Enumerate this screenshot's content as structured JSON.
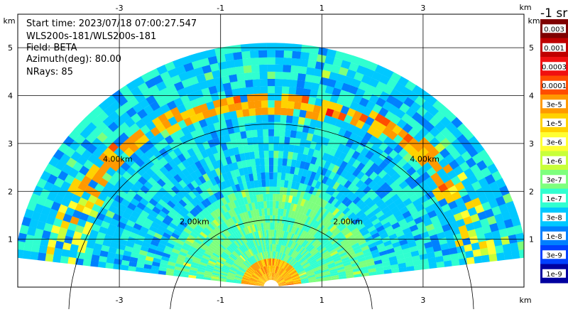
{
  "info": {
    "start_time": "Start time: 2023/07/18 07:00:27.547",
    "instrument": "WLS200s-181/WLS200s-181",
    "field": "Field: BETA",
    "azimuth": "Azimuth(deg): 80.00",
    "nrays": "NRays: 85"
  },
  "colorbar": {
    "unit": "-1 sr",
    "labels": [
      "0.003",
      "0.001",
      "0.0003",
      "0.0001",
      "3e-5",
      "1e-5",
      "3e-6",
      "1e-6",
      "3e-7",
      "1e-7",
      "3e-8",
      "1e-8",
      "3e-9",
      "1e-9"
    ],
    "colors": [
      "#7f0000",
      "#c00000",
      "#f01010",
      "#ff4d00",
      "#ff9900",
      "#ffd200",
      "#ffff33",
      "#c8ff3a",
      "#7dff7d",
      "#30ffd0",
      "#00c8ff",
      "#0080ff",
      "#0040ff",
      "#0000a0"
    ]
  },
  "chart_data": {
    "type": "heatmap",
    "subtype": "RHI lidar scan",
    "field": "BETA",
    "x_axis": {
      "unit": "km",
      "range": [
        -5.0,
        5.0
      ],
      "ticks": [
        -3,
        -1,
        1,
        3
      ]
    },
    "y_axis": {
      "unit": "km",
      "range": [
        0.0,
        5.7
      ],
      "ticks": [
        1,
        2,
        3,
        4,
        5
      ]
    },
    "grid": true,
    "range_rings_km": [
      2.0,
      4.0
    ],
    "range_ring_labels": [
      "2.00km",
      "4.00km"
    ],
    "max_range_km": 5.1,
    "elevation_range_deg": [
      7,
      173
    ],
    "colorscale": "log10(BETA), jet-like",
    "features": [
      {
        "name": "high-backscatter layer",
        "range_km": [
          3.75,
          4.05
        ],
        "value": "1e-5 to 3e-5"
      },
      {
        "name": "near-range region",
        "range_km": [
          0.0,
          2.0
        ],
        "value": "1e-7"
      },
      {
        "name": "background",
        "value": "1e-8 to 3e-8"
      }
    ]
  }
}
